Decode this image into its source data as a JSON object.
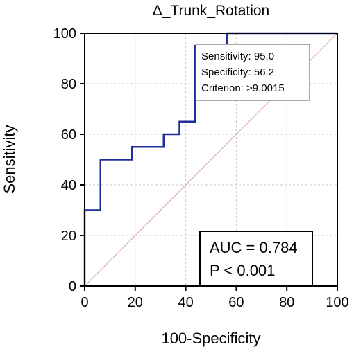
{
  "chart_data": {
    "type": "line",
    "title": "Δ_Trunk_Rotation",
    "xlabel": "100-Specificity",
    "ylabel": "Sensitivity",
    "xlim": [
      0,
      100
    ],
    "ylim": [
      0,
      100
    ],
    "x_ticks": [
      0,
      20,
      40,
      60,
      80,
      100
    ],
    "y_ticks": [
      0,
      20,
      40,
      60,
      80,
      100
    ],
    "grid": true,
    "roc_color": "#1f2d9e",
    "diagonal_color": "#d9a0a8",
    "series": [
      {
        "x": [
          0,
          0,
          6.25,
          6.25,
          18.75,
          18.75,
          31.25,
          31.25,
          37.5,
          37.5,
          43.75,
          43.75,
          56.25,
          56.25,
          100
        ],
        "y": [
          0,
          30,
          30,
          50,
          50,
          55,
          55,
          60,
          60,
          65,
          65,
          95,
          95,
          100,
          100
        ]
      }
    ],
    "diagonal": {
      "x": [
        0,
        100
      ],
      "y": [
        0,
        100
      ]
    },
    "annotations": {
      "info_box": [
        "Sensitivity: 95.0",
        "Specificity: 56.2",
        "Criterion: >9.0015"
      ],
      "stats_box": [
        "AUC = 0.784",
        "P < 0.001"
      ]
    }
  }
}
